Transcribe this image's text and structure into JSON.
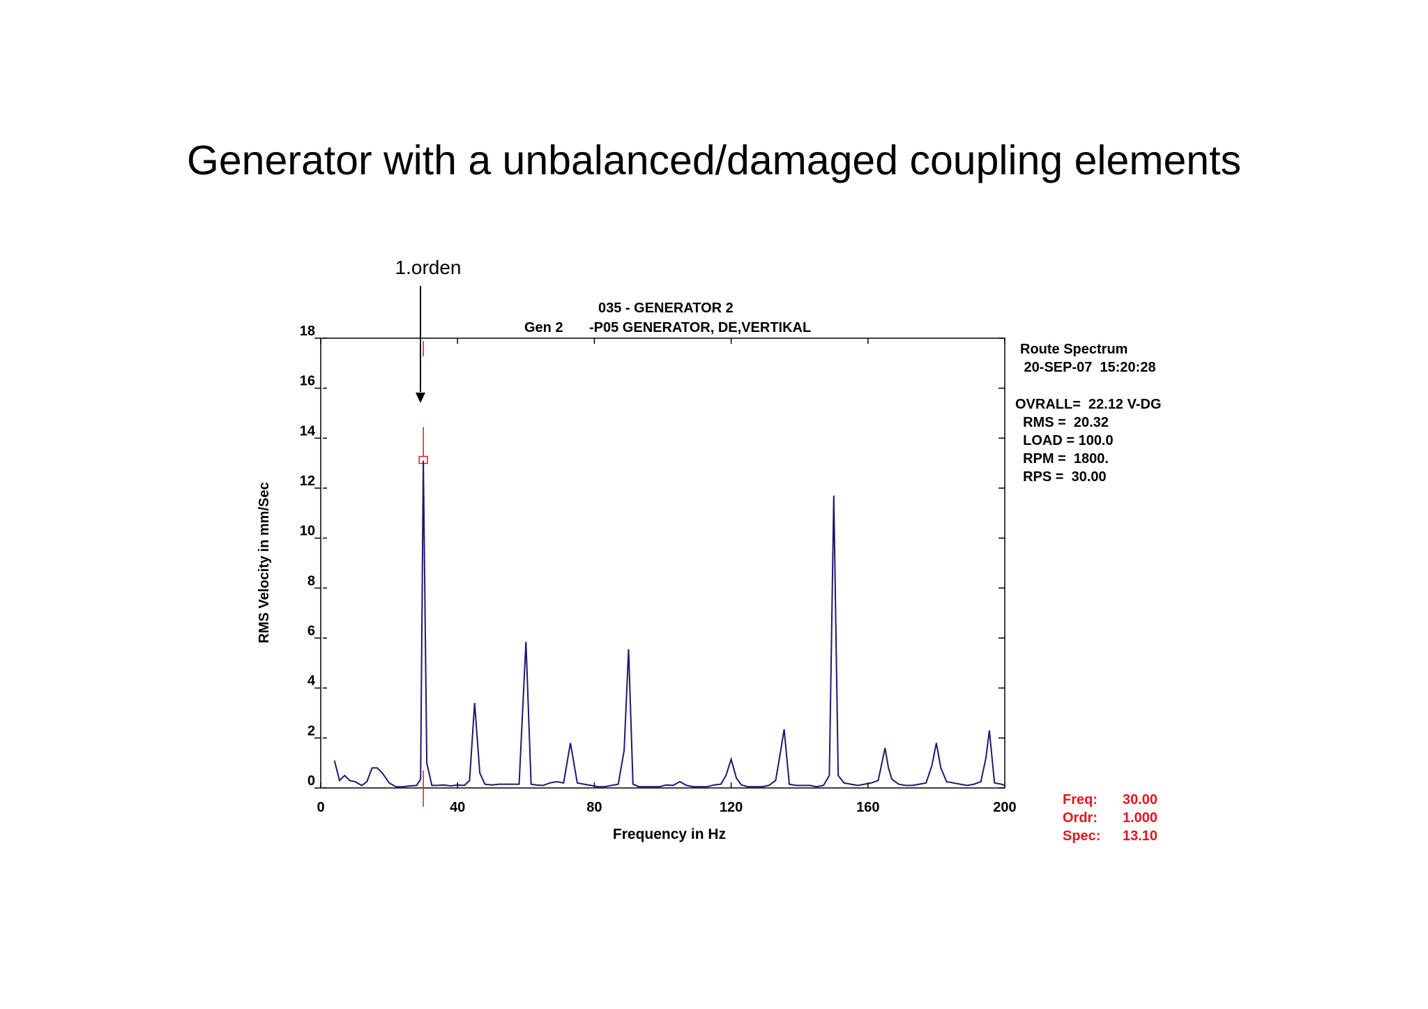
{
  "slide": {
    "title": "Generator with a unbalanced/damaged coupling elements"
  },
  "annotation": {
    "label": "1.orden"
  },
  "chart_header": {
    "line1": "035  - GENERATOR 2",
    "line2_left": "Gen 2",
    "line2_right": "-P05   GENERATOR, DE,VERTIKAL"
  },
  "info_panel": {
    "lines": [
      "Route Spectrum",
      " 20-SEP-07  15:20:28",
      "OVRALL=  22.12 V-DG",
      "  RMS =  20.32",
      "  LOAD = 100.0",
      "  RPM =  1800.",
      "  RPS =  30.00"
    ]
  },
  "cursor_readout": {
    "labels": [
      "Freq:",
      "Ordr:",
      "Spec:"
    ],
    "values": [
      "30.00",
      "1.000",
      "13.10"
    ],
    "color": "#e8141b"
  },
  "colors": {
    "trace": "#1a1a6e",
    "cursor": "#e8141b",
    "axis": "#000000"
  },
  "chart_data": {
    "type": "line",
    "xlabel": "Frequency in Hz",
    "ylabel": "RMS Velocity in mm/Sec",
    "xlim": [
      0,
      200
    ],
    "ylim": [
      0,
      18
    ],
    "xticks": [
      0,
      40,
      80,
      120,
      160,
      200
    ],
    "yticks": [
      0,
      2,
      4,
      6,
      8,
      10,
      12,
      14,
      16,
      18
    ],
    "grid": false,
    "cursor": {
      "x": 30.0,
      "y": 13.1
    },
    "series": [
      {
        "x": [
          4,
          5.5,
          7,
          8.5,
          10,
          12,
          13.5,
          15,
          16.5,
          18,
          20,
          22,
          24,
          26,
          28,
          29.2,
          30,
          31,
          32.5,
          34,
          36,
          38,
          40,
          42,
          43.5,
          45,
          46.5,
          48,
          50,
          52,
          54,
          56,
          58,
          60,
          61.5,
          63,
          65,
          67,
          69,
          71,
          73,
          75,
          77,
          79,
          81,
          83,
          85,
          87,
          88.7,
          90,
          91.3,
          93,
          95,
          97,
          99,
          101,
          103,
          105,
          107,
          109,
          111,
          113,
          115,
          117,
          118.5,
          120,
          121.5,
          123,
          125,
          127,
          129,
          131,
          133,
          134.5,
          135.5,
          137,
          139,
          141,
          143,
          145,
          147,
          148.7,
          150,
          151.3,
          153,
          155,
          157,
          159,
          161,
          163,
          165,
          166,
          167,
          169,
          171,
          173,
          175,
          177,
          178.7,
          180,
          181.3,
          183,
          185,
          187,
          189,
          191,
          193,
          194.5,
          195.5,
          197,
          199,
          200
        ],
        "y": [
          1.1,
          0.3,
          0.5,
          0.3,
          0.25,
          0.1,
          0.25,
          0.8,
          0.8,
          0.6,
          0.2,
          0.05,
          0.05,
          0.08,
          0.1,
          0.35,
          13.1,
          1.0,
          0.1,
          0.1,
          0.12,
          0.08,
          0.12,
          0.1,
          0.3,
          3.4,
          0.6,
          0.15,
          0.12,
          0.15,
          0.15,
          0.15,
          0.15,
          5.85,
          0.15,
          0.12,
          0.1,
          0.2,
          0.25,
          0.2,
          1.8,
          0.2,
          0.15,
          0.1,
          0.05,
          0.05,
          0.1,
          0.15,
          1.5,
          5.55,
          0.15,
          0.05,
          0.05,
          0.05,
          0.05,
          0.12,
          0.1,
          0.25,
          0.1,
          0.05,
          0.05,
          0.05,
          0.12,
          0.15,
          0.5,
          1.15,
          0.4,
          0.12,
          0.05,
          0.05,
          0.05,
          0.1,
          0.3,
          1.5,
          2.35,
          0.15,
          0.1,
          0.1,
          0.1,
          0.05,
          0.1,
          0.5,
          11.7,
          0.5,
          0.2,
          0.15,
          0.1,
          0.15,
          0.2,
          0.3,
          1.6,
          0.8,
          0.35,
          0.15,
          0.1,
          0.1,
          0.15,
          0.2,
          0.9,
          1.8,
          0.8,
          0.25,
          0.2,
          0.15,
          0.1,
          0.15,
          0.25,
          1.2,
          2.3,
          0.2,
          0.15,
          0.1
        ]
      }
    ]
  }
}
